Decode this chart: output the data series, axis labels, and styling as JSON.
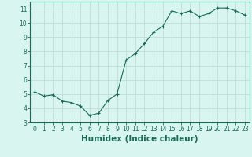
{
  "x": [
    0,
    1,
    2,
    3,
    4,
    5,
    6,
    7,
    8,
    9,
    10,
    11,
    12,
    13,
    14,
    15,
    16,
    17,
    18,
    19,
    20,
    21,
    22,
    23
  ],
  "y": [
    5.15,
    4.85,
    4.95,
    4.5,
    4.4,
    4.15,
    3.5,
    3.65,
    4.55,
    5.0,
    7.4,
    7.85,
    8.55,
    9.35,
    9.75,
    10.85,
    10.65,
    10.85,
    10.45,
    10.65,
    11.05,
    11.05,
    10.85,
    10.55
  ],
  "line_color": "#1a6b5a",
  "marker": "+",
  "marker_size": 3,
  "background_color": "#d8f5f0",
  "grid_color": "#c0ddd8",
  "xlabel": "Humidex (Indice chaleur)",
  "xlim": [
    -0.5,
    23.5
  ],
  "ylim": [
    3,
    11.5
  ],
  "yticks": [
    3,
    4,
    5,
    6,
    7,
    8,
    9,
    10,
    11
  ],
  "xticks": [
    0,
    1,
    2,
    3,
    4,
    5,
    6,
    7,
    8,
    9,
    10,
    11,
    12,
    13,
    14,
    15,
    16,
    17,
    18,
    19,
    20,
    21,
    22,
    23
  ],
  "tick_label_size": 5.5,
  "xlabel_size": 7.5,
  "axis_color": "#1a6b5a",
  "line_width": 0.8,
  "marker_edge_width": 0.8
}
